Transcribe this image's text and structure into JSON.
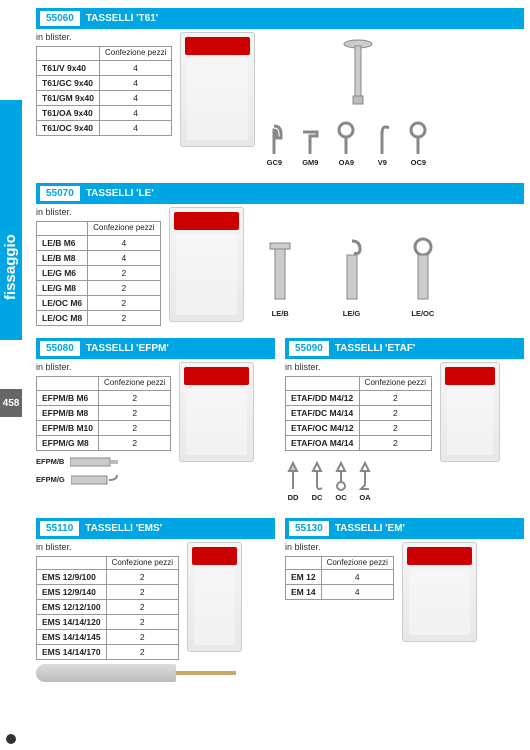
{
  "page": {
    "tab": "fissaggio",
    "num": "458"
  },
  "s1": {
    "code": "55060",
    "title": "TASSELLI 'T61'",
    "note": "in blister.",
    "th": "Confezione\npezzi",
    "rows": [
      [
        "T61/V 9x40",
        "4"
      ],
      [
        "T61/GC 9x40",
        "4"
      ],
      [
        "T61/GM 9x40",
        "4"
      ],
      [
        "T61/OA 9x40",
        "4"
      ],
      [
        "T61/OC 9x40",
        "4"
      ]
    ],
    "icons": [
      "GC9",
      "GM9",
      "OA9",
      "V9",
      "OC9"
    ]
  },
  "s2": {
    "code": "55070",
    "title": "TASSELLI 'LE'",
    "note": "in blister.",
    "th": "Confezione\npezzi",
    "rows": [
      [
        "LE/B M6",
        "4"
      ],
      [
        "LE/B M8",
        "4"
      ],
      [
        "LE/G M6",
        "2"
      ],
      [
        "LE/G M8",
        "2"
      ],
      [
        "LE/OC M6",
        "2"
      ],
      [
        "LE/OC M8",
        "2"
      ]
    ],
    "icons": [
      "LE/B",
      "LE/G",
      "LE/OC"
    ]
  },
  "s3": {
    "code": "55080",
    "title": "TASSELLI 'EFPM'",
    "note": "in blister.",
    "th": "Confezione\npezzi",
    "rows": [
      [
        "EFPM/B M6",
        "2"
      ],
      [
        "EFPM/B M8",
        "2"
      ],
      [
        "EFPM/B M10",
        "2"
      ],
      [
        "EFPM/G M8",
        "2"
      ]
    ],
    "thumbs": [
      "EFPM/B",
      "EFPM/G"
    ]
  },
  "s4": {
    "code": "55090",
    "title": "TASSELLI 'ETAF'",
    "note": "in blister.",
    "th": "Confezione\npezzi",
    "rows": [
      [
        "ETAF/DD M4/12",
        "2"
      ],
      [
        "ETAF/DC M4/14",
        "2"
      ],
      [
        "ETAF/OC M4/12",
        "2"
      ],
      [
        "ETAF/OA M4/14",
        "2"
      ]
    ],
    "icons": [
      "DD",
      "DC",
      "OC",
      "OA"
    ]
  },
  "s5": {
    "code": "55110",
    "title": "TASSELLI 'EMS'",
    "note": "in blister.",
    "th": "Confezione\npezzi",
    "rows": [
      [
        "EMS 12/9/100",
        "2"
      ],
      [
        "EMS 12/9/140",
        "2"
      ],
      [
        "EMS 12/12/100",
        "2"
      ],
      [
        "EMS 14/14/120",
        "2"
      ],
      [
        "EMS 14/14/145",
        "2"
      ],
      [
        "EMS 14/14/170",
        "2"
      ]
    ]
  },
  "s6": {
    "code": "55130",
    "title": "TASSELLI 'EM'",
    "note": "in blister.",
    "th": "Confezione\npezzi",
    "rows": [
      [
        "EM 12",
        "4"
      ],
      [
        "EM 14",
        "4"
      ]
    ]
  }
}
